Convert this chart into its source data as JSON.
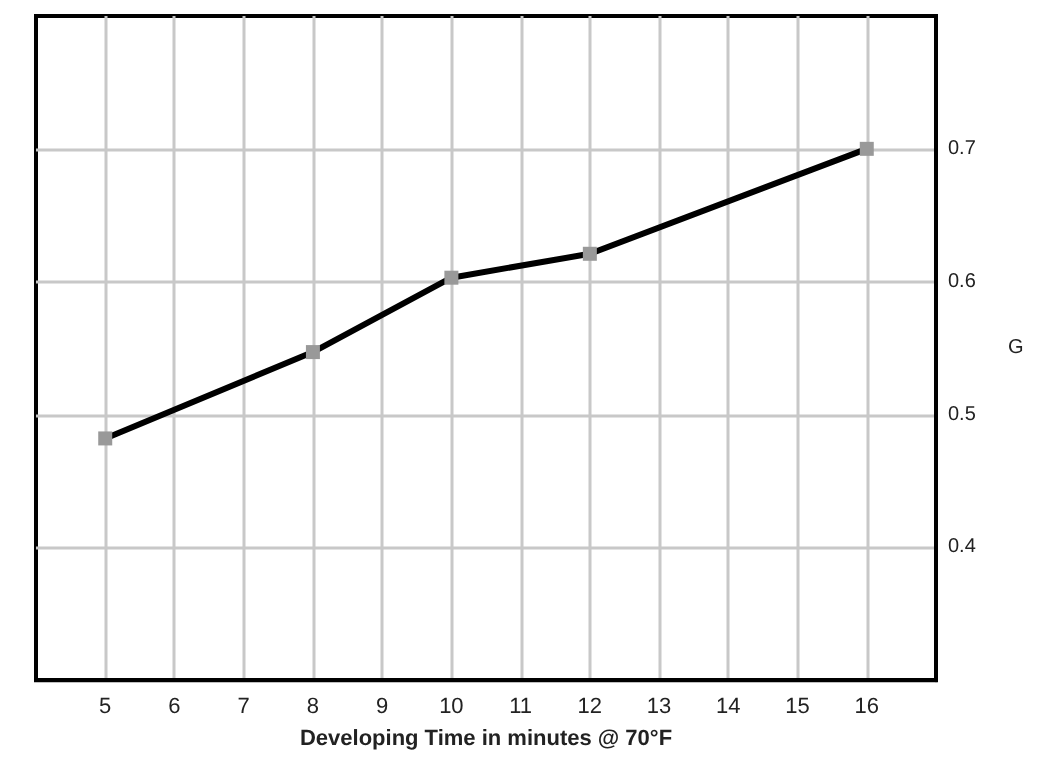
{
  "chart_data": {
    "type": "line",
    "xlabel": "Developing Time in minutes @ 70°F",
    "ylabel": "G",
    "x": [
      5,
      8,
      10,
      12,
      16
    ],
    "series": [
      {
        "color": "#000000",
        "values": [
          0.482,
          0.547,
          0.603,
          0.621,
          0.7
        ]
      }
    ],
    "xlim": [
      4,
      17
    ],
    "xticks": [
      5,
      6,
      7,
      8,
      9,
      10,
      11,
      12,
      13,
      14,
      15,
      16
    ],
    "ylim": [
      0.3,
      0.8
    ],
    "yticks": [
      0.4,
      0.5,
      0.6,
      0.7
    ],
    "grid": true,
    "marker": "square",
    "line_style": "solid"
  }
}
